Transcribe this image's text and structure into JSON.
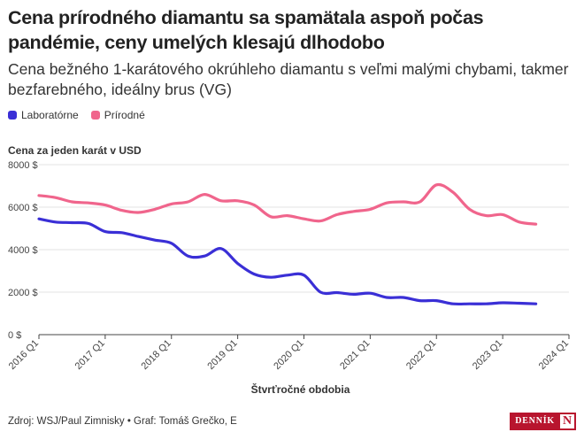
{
  "header": {
    "title": "Cena prírodného diamantu sa spamätala aspoň počas pandémie, ceny umelých klesajú dlhodobo",
    "subtitle": "Cena bežného 1-karátového okrúhleho diamantu s veľmi malými chybami, takmer bezfarebného, ideálny brus (VG)"
  },
  "footer": {
    "source": "Zdroj: WSJ/Paul Zimnisky • Graf: Tomáš Grečko, E"
  },
  "logo": {
    "text": "DENNÍK",
    "letter": "N"
  },
  "colors": {
    "lab": "#3a2fd6",
    "natural": "#f0658c",
    "grid": "#e3e3e3",
    "axis": "#444444",
    "brand": "#b8152e"
  },
  "chart_data": {
    "type": "line",
    "title": "Cena prírodného diamantu sa spamätala aspoň počas pandémie, ceny umelých klesajú dlhodobo",
    "subtitle": "Cena bežného 1-karátového okrúhleho diamantu s veľmi malými chybami, takmer bezfarebného, ideálny brus (VG)",
    "ylabel": "Cena za jeden karát v USD",
    "xlabel": "Štvrťročné obdobia",
    "x": [
      "2016 Q1",
      "2016 Q2",
      "2016 Q3",
      "2016 Q4",
      "2017 Q1",
      "2017 Q2",
      "2017 Q3",
      "2017 Q4",
      "2018 Q1",
      "2018 Q2",
      "2018 Q3",
      "2018 Q4",
      "2019 Q1",
      "2019 Q2",
      "2019 Q3",
      "2019 Q4",
      "2020 Q1",
      "2020 Q2",
      "2020 Q3",
      "2020 Q4",
      "2021 Q1",
      "2021 Q2",
      "2021 Q3",
      "2021 Q4",
      "2022 Q1",
      "2022 Q2",
      "2022 Q3",
      "2022 Q4",
      "2023 Q1",
      "2023 Q2",
      "2023 Q3"
    ],
    "x_ticks": [
      "2016 Q1",
      "2017 Q1",
      "2018 Q1",
      "2019 Q1",
      "2020 Q1",
      "2021 Q1",
      "2022 Q1",
      "2023 Q1",
      "2024 Q1"
    ],
    "x_range": [
      "2016 Q1",
      "2024 Q1"
    ],
    "y_ticks": [
      0,
      2000,
      4000,
      6000,
      8000
    ],
    "y_tick_labels": [
      "0 $",
      "2000 $",
      "4000 $",
      "6000 $",
      "8000 $"
    ],
    "ylim": [
      0,
      8000
    ],
    "grid": "horizontal",
    "legend": "top-left",
    "series": [
      {
        "name": "Laboratórne",
        "color": "#3a2fd6",
        "values": [
          5450,
          5300,
          5270,
          5230,
          4850,
          4800,
          4620,
          4450,
          4300,
          3700,
          3700,
          4050,
          3350,
          2850,
          2700,
          2800,
          2800,
          2000,
          1980,
          1900,
          1950,
          1750,
          1750,
          1600,
          1600,
          1450,
          1450,
          1450,
          1500,
          1480,
          1450
        ]
      },
      {
        "name": "Prírodné",
        "color": "#f0658c",
        "values": [
          6550,
          6450,
          6250,
          6200,
          6100,
          5850,
          5750,
          5900,
          6150,
          6250,
          6600,
          6300,
          6300,
          6100,
          5550,
          5600,
          5450,
          5350,
          5650,
          5800,
          5900,
          6200,
          6250,
          6250,
          7050,
          6700,
          5900,
          5600,
          5650,
          5300,
          5200
        ]
      }
    ]
  }
}
